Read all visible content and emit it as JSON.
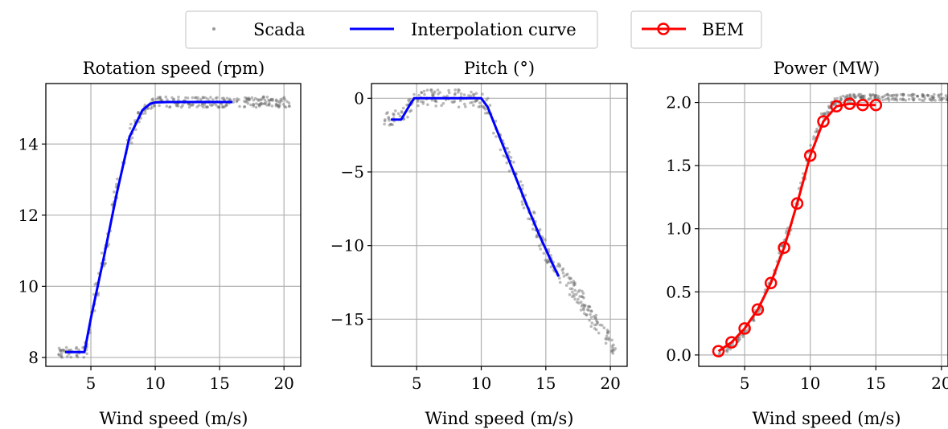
{
  "legend": {
    "scada_label": "Scada",
    "interp_label": "Interpolation curve",
    "bem_label": "BEM"
  },
  "colors": {
    "scada": "#666666",
    "interp": "#0000ff",
    "bem": "#ff0000",
    "grid": "#b0b0b0"
  },
  "chart_data": [
    {
      "type": "scatter",
      "title": "Rotation speed (rpm)",
      "xlabel": "Wind speed (m/s)",
      "ylabel": "",
      "xlim": [
        1.5,
        21.3
      ],
      "ylim": [
        7.75,
        15.7
      ],
      "xticks": [
        5,
        10,
        15,
        20
      ],
      "xticklabels": [
        "5",
        "10",
        "15",
        "20"
      ],
      "yticks": [
        8,
        10,
        12,
        14
      ],
      "yticklabels": [
        "8",
        "10",
        "12",
        "14"
      ],
      "grid": true,
      "series": [
        {
          "name": "Interpolation curve",
          "type": "line",
          "x": [
            3.0,
            4.5,
            5.0,
            6.0,
            7.0,
            8.0,
            9.0,
            9.6,
            10.0,
            11.0,
            16.0
          ],
          "y": [
            8.15,
            8.15,
            9.1,
            10.8,
            12.6,
            14.2,
            14.95,
            15.13,
            15.17,
            15.18,
            15.18
          ]
        }
      ],
      "scada_band": [
        [
          2.5,
          8.15
        ],
        [
          3.0,
          8.15
        ],
        [
          4.5,
          8.15
        ],
        [
          5.0,
          9.1
        ],
        [
          6.0,
          10.8
        ],
        [
          7.0,
          12.6
        ],
        [
          8.0,
          14.2
        ],
        [
          9.0,
          14.95
        ],
        [
          9.6,
          15.13
        ],
        [
          10.0,
          15.17
        ],
        [
          11.0,
          15.18
        ],
        [
          16.0,
          15.18
        ],
        [
          20.5,
          15.18
        ]
      ],
      "scada_spread": [
        0.35,
        0.15
      ]
    },
    {
      "type": "scatter",
      "title": "Pitch (°)",
      "xlabel": "Wind speed (m/s)",
      "ylabel": "",
      "xlim": [
        1.5,
        21.3
      ],
      "ylim": [
        -18.2,
        1.0
      ],
      "xticks": [
        5,
        10,
        15,
        20
      ],
      "xticklabels": [
        "5",
        "10",
        "15",
        "20"
      ],
      "yticks": [
        0,
        -5,
        -10,
        -15
      ],
      "yticklabels": [
        "0",
        "−5",
        "−10",
        "−15"
      ],
      "grid": true,
      "series": [
        {
          "name": "Interpolation curve",
          "type": "line",
          "x": [
            3.0,
            3.8,
            4.5,
            4.8,
            10.0,
            10.5,
            11.5,
            12.5,
            13.5,
            14.5,
            15.5,
            16.0
          ],
          "y": [
            -1.45,
            -1.45,
            -0.4,
            0.0,
            0.0,
            -0.6,
            -2.8,
            -5.0,
            -7.2,
            -9.3,
            -11.2,
            -12.1
          ]
        }
      ],
      "scada_band": [
        [
          2.5,
          -1.45
        ],
        [
          3.0,
          -1.45
        ],
        [
          3.8,
          -1.45
        ],
        [
          4.5,
          -0.4
        ],
        [
          4.8,
          0.0
        ],
        [
          10.0,
          0.0
        ],
        [
          10.5,
          -0.6
        ],
        [
          11.5,
          -2.8
        ],
        [
          12.5,
          -5.0
        ],
        [
          13.5,
          -7.2
        ],
        [
          14.5,
          -9.3
        ],
        [
          15.5,
          -11.2
        ],
        [
          16.5,
          -12.3
        ],
        [
          17.5,
          -13.4
        ],
        [
          18.5,
          -14.8
        ],
        [
          19.5,
          -15.9
        ],
        [
          20.5,
          -17.2
        ]
      ],
      "scada_spread": [
        0.3,
        0.6
      ]
    },
    {
      "type": "scatter",
      "title": "Power (MW)",
      "xlabel": "Wind speed (m/s)",
      "ylabel": "",
      "xlim": [
        1.5,
        20.5
      ],
      "ylim": [
        -0.09,
        2.15
      ],
      "xticks": [
        5,
        10,
        15,
        20
      ],
      "xticklabels": [
        "5",
        "10",
        "15",
        "20"
      ],
      "yticks": [
        0.0,
        0.5,
        1.0,
        1.5,
        2.0
      ],
      "yticklabels": [
        "0.0",
        "0.5",
        "1.0",
        "1.5",
        "2.0"
      ],
      "grid": true,
      "series": [
        {
          "name": "BEM",
          "type": "line-marker",
          "x": [
            3,
            4,
            5,
            6,
            7,
            8,
            9,
            10,
            11,
            12,
            13,
            14,
            15
          ],
          "y": [
            0.03,
            0.1,
            0.21,
            0.36,
            0.57,
            0.85,
            1.2,
            1.58,
            1.85,
            1.97,
            1.99,
            1.98,
            1.98
          ]
        }
      ],
      "scada_band": [
        [
          3.0,
          0.01
        ],
        [
          4.0,
          0.07
        ],
        [
          5.0,
          0.19
        ],
        [
          6.0,
          0.35
        ],
        [
          7.0,
          0.58
        ],
        [
          8.0,
          0.88
        ],
        [
          9.0,
          1.22
        ],
        [
          10.0,
          1.62
        ],
        [
          11.0,
          1.9
        ],
        [
          12.0,
          2.02
        ],
        [
          13.0,
          2.04
        ],
        [
          14.0,
          2.04
        ],
        [
          16.0,
          2.04
        ],
        [
          20.5,
          2.04
        ]
      ],
      "scada_spread": [
        0.3,
        0.025
      ]
    }
  ]
}
